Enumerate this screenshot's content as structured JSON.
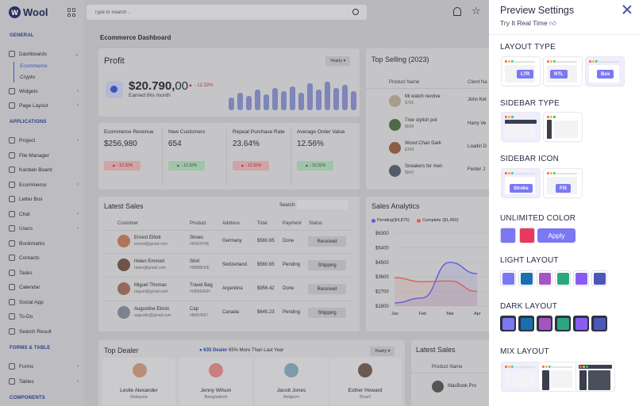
{
  "brand": {
    "logo_letter": "W",
    "name": "Wool"
  },
  "search": {
    "placeholder": "Type to Search .."
  },
  "sidebar": {
    "sections": [
      "GENERAL",
      "APPLICATIONS",
      "FORMS & TABLE",
      "COMPONENTS"
    ],
    "items": [
      {
        "label": "Dashboards"
      },
      {
        "label": "Widgets"
      },
      {
        "label": "Page Layout"
      },
      {
        "label": "Project"
      },
      {
        "label": "File Manager"
      },
      {
        "label": "Kanban Board"
      },
      {
        "label": "Ecommerce"
      },
      {
        "label": "Letter Box"
      },
      {
        "label": "Chat"
      },
      {
        "label": "Users"
      },
      {
        "label": "Bookmarks"
      },
      {
        "label": "Contacts"
      },
      {
        "label": "Tasks"
      },
      {
        "label": "Calendar"
      },
      {
        "label": "Social App"
      },
      {
        "label": "To-Do"
      },
      {
        "label": "Search Result"
      },
      {
        "label": "Forms"
      },
      {
        "label": "Tables"
      }
    ],
    "sub_items": [
      "Ecommerce",
      "Crypto"
    ]
  },
  "main": {
    "title": "Ecommerce Dashboard",
    "profit": {
      "title": "Profit",
      "filter": "Yearly ▾",
      "value": "$20.790,",
      "cents": "00",
      "change": "▲ - 12.32%",
      "sub": "Earned this month",
      "bars": [
        16,
        22,
        18,
        26,
        20,
        28,
        24,
        30,
        22,
        34,
        26,
        36,
        28,
        32,
        24
      ]
    },
    "metrics": [
      {
        "label": "Ecommerce Revenue",
        "value": "$256,980",
        "badge": "▲ - 12.32%",
        "tone": "red"
      },
      {
        "label": "New Customers",
        "value": "654",
        "badge": "▲ - 12.32%",
        "tone": "green"
      },
      {
        "label": "Repeat Purchase Rate",
        "value": "23.64%",
        "badge": "▲ - 12.32%",
        "tone": "red"
      },
      {
        "label": "Average Order Value",
        "value": "12.56%",
        "badge": "▲ - 12.32%",
        "tone": "green"
      }
    ],
    "top_selling": {
      "title": "Top Selling (2023)",
      "headers": [
        "Product Name",
        "Client Na"
      ],
      "rows": [
        {
          "name": "Mi watch revolve",
          "price": "$726",
          "client": "John Ket"
        },
        {
          "name": "Tree stylish pot",
          "price": "$698",
          "client": "Harry Ve"
        },
        {
          "name": "Wood Chair Dark",
          "price": "$158",
          "client": "Loadin D"
        },
        {
          "name": "Sneakers for men",
          "price": "$942",
          "client": "Fenter J"
        }
      ]
    },
    "latest_sales": {
      "title": "Latest Sales",
      "search_label": "Search:",
      "headers": [
        "Customer",
        "Product",
        "Address",
        "Total",
        "Payment",
        "Status"
      ],
      "rows": [
        {
          "name": "Ernest Elliott",
          "email": "ernest@gmail.com",
          "product": "Shoes",
          "sku": "#AS6474B",
          "address": "Germany",
          "total": "$560.65",
          "payment": "Done",
          "status": "Received"
        },
        {
          "name": "Helen Emmert",
          "email": "helen@gmail.com",
          "product": "Shirt",
          "sku": "#NB86H2E",
          "address": "Switzerland",
          "total": "$560.65",
          "payment": "Pending",
          "status": "Shipping"
        },
        {
          "name": "Miguel Thomas",
          "email": "miguel@gmail.com",
          "product": "Travel Bag",
          "sku": "#UB654GH",
          "address": "Argentina",
          "total": "$956.42",
          "payment": "Done",
          "status": "Received"
        },
        {
          "name": "Augustine Ebron",
          "email": "augustin@gmail.com",
          "product": "Cap",
          "sku": "#BA54567",
          "address": "Canada",
          "total": "$645.23",
          "payment": "Pending",
          "status": "Shipping"
        }
      ]
    },
    "analytics": {
      "title": "Sales Analytics"
    },
    "top_dealer": {
      "title": "Top Dealer",
      "highlight": "● 635 Dealer",
      "note": "65% More Than Last Year",
      "filter": "Yearly ▾",
      "dealers": [
        {
          "name": "Leslie Alexander",
          "location": "Malaysia"
        },
        {
          "name": "Jenny Wilson",
          "location": "Bangladesh"
        },
        {
          "name": "Jacob Jones",
          "location": "Belgium"
        },
        {
          "name": "Esther Howard",
          "location": "Brazil"
        }
      ]
    },
    "latest_sales_2": {
      "title": "Latest Sales",
      "header": "Product Name",
      "row": "MacBook Pro"
    }
  },
  "chart_data": {
    "type": "line",
    "categories": [
      "Jan",
      "Feb",
      "Mar",
      "Apr"
    ],
    "series": [
      {
        "name": "Pending($4,875)",
        "color": "#5b5ce0",
        "values": [
          2000,
          2300,
          4500,
          3800
        ]
      },
      {
        "name": "Complete ($1,450)",
        "color": "#d9624f",
        "values": [
          3550,
          3300,
          3350,
          2700
        ]
      }
    ],
    "yticks": [
      "$6300",
      "$5400",
      "$4500",
      "$3600",
      "$2700",
      "$1800"
    ],
    "ylim": [
      1800,
      6300
    ],
    "grid": true,
    "legend": "top-left"
  },
  "panel": {
    "title": "Preview Settings",
    "subtitle": "Try It Real Time",
    "layout_type": {
      "label": "LAYOUT TYPE",
      "options": [
        "LTR",
        "RTL",
        "Box"
      ],
      "selected": "Box"
    },
    "sidebar_type": {
      "label": "SIDEBAR TYPE"
    },
    "sidebar_icon": {
      "label": "SIDEBAR ICON",
      "options": [
        "Stroke",
        "Fill"
      ],
      "selected": "Stroke"
    },
    "unlimited_color": {
      "label": "UNLIMITED COLOR",
      "colors": [
        "#7a78f2",
        "#e8395f"
      ],
      "apply": "Apply"
    },
    "light_layout": {
      "label": "LIGHT LAYOUT",
      "colors": [
        "#7a78f2",
        "#1a6fb0",
        "#a554c4",
        "#2ba67e",
        "#8a5cf5",
        "#4b58b9"
      ]
    },
    "dark_layout": {
      "label": "DARK LAYOUT",
      "colors": [
        "#7a78f2",
        "#1a6fb0",
        "#a554c4",
        "#2ba67e",
        "#8a5cf5",
        "#4b58b9"
      ]
    },
    "mix_layout": {
      "label": "MIX LAYOUT"
    }
  }
}
